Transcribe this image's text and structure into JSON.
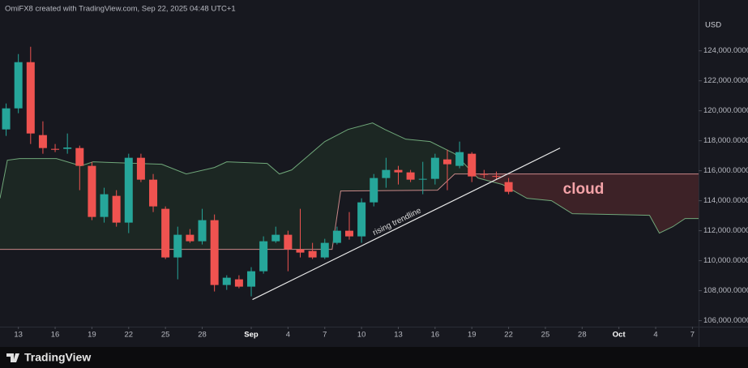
{
  "chart_data": {
    "type": "candlestick",
    "attribution": "OmiFX8 created with TradingView.com, Sep 22, 2025 04:48 UTC+1",
    "currency": "USD",
    "brand": "TradingView",
    "up_color": "#26a69a",
    "down_color": "#ef5350",
    "xlim": [
      -1.5,
      55.5
    ],
    "ylim": [
      105600,
      126200
    ],
    "grid": false,
    "xticks": [
      {
        "value": 0,
        "label": "13"
      },
      {
        "value": 3,
        "label": "16"
      },
      {
        "value": 6,
        "label": "19"
      },
      {
        "value": 9,
        "label": "22"
      },
      {
        "value": 12,
        "label": "25"
      },
      {
        "value": 15,
        "label": "28"
      },
      {
        "value": 19,
        "label": "Sep"
      },
      {
        "value": 22,
        "label": "4"
      },
      {
        "value": 25,
        "label": "7"
      },
      {
        "value": 28,
        "label": "10"
      },
      {
        "value": 31,
        "label": "13"
      },
      {
        "value": 34,
        "label": "16"
      },
      {
        "value": 37,
        "label": "19"
      },
      {
        "value": 40,
        "label": "22"
      },
      {
        "value": 43,
        "label": "25"
      },
      {
        "value": 46,
        "label": "28"
      },
      {
        "value": 49,
        "label": "Oct"
      },
      {
        "value": 52,
        "label": "4"
      },
      {
        "value": 55,
        "label": "7"
      }
    ],
    "yticks": [
      {
        "value": 106000,
        "label": "106,000.0000"
      },
      {
        "value": 108000,
        "label": "108,000.0000"
      },
      {
        "value": 110000,
        "label": "110,000.0000"
      },
      {
        "value": 112000,
        "label": "112,000.0000"
      },
      {
        "value": 114000,
        "label": "114,000.0000"
      },
      {
        "value": 116000,
        "label": "116,000.0000"
      },
      {
        "value": 118000,
        "label": "118,000.0000"
      },
      {
        "value": 120000,
        "label": "120,000.0000"
      },
      {
        "value": 122000,
        "label": "122,000.0000"
      },
      {
        "value": 124000,
        "label": "124,000.0000"
      }
    ],
    "candles": {
      "x": [
        -1,
        0,
        1,
        2,
        3,
        4,
        5,
        6,
        7,
        8,
        9,
        10,
        11,
        12,
        13,
        14,
        15,
        16,
        17,
        18,
        19,
        20,
        21,
        22,
        23,
        24,
        25,
        26,
        27,
        28,
        29,
        30,
        31,
        32,
        33,
        34,
        35,
        36,
        37,
        38,
        39,
        40
      ],
      "open": [
        118757,
        120162,
        123243,
        118378,
        117460,
        117460,
        117514,
        116325,
        112919,
        114325,
        112541,
        116865,
        115405,
        113460,
        110217,
        111730,
        111298,
        112703,
        108380,
        108757,
        108270,
        109297,
        111297,
        111730,
        110757,
        110650,
        110217,
        111190,
        112000,
        111622,
        113892,
        115514,
        116054,
        115892,
        115405,
        115460,
        116757,
        116325,
        117135,
        115785,
        115650,
        115243
      ],
      "high": [
        120487,
        123784,
        124270,
        119297,
        117784,
        118486,
        117676,
        116595,
        114866,
        114703,
        117136,
        117136,
        115784,
        113622,
        112271,
        112109,
        113460,
        113082,
        109027,
        109027,
        109568,
        111623,
        112271,
        112001,
        113460,
        111190,
        111460,
        112271,
        113244,
        114163,
        115784,
        116865,
        116325,
        116055,
        116595,
        117136,
        117406,
        117946,
        117243,
        116055,
        115946,
        115514
      ],
      "low": [
        118325,
        119838,
        117784,
        117136,
        117244,
        117136,
        114703,
        112704,
        112541,
        112271,
        111839,
        115244,
        113244,
        110109,
        108758,
        111190,
        111082,
        107947,
        108055,
        108163,
        107623,
        109136,
        111190,
        109298,
        110217,
        110109,
        110109,
        111082,
        111406,
        111190,
        113622,
        114866,
        115082,
        115244,
        114433,
        115082,
        114703,
        116163,
        115244,
        115514,
        115406,
        114433
      ],
      "close": [
        120162,
        123243,
        118486,
        117514,
        117400,
        117550,
        116325,
        112919,
        114433,
        112541,
        116865,
        115405,
        113622,
        110217,
        111730,
        111298,
        112703,
        108380,
        108865,
        108270,
        109297,
        111297,
        111730,
        110757,
        110541,
        110217,
        111190,
        112000,
        111622,
        113892,
        115514,
        116054,
        115892,
        115405,
        115460,
        116865,
        116433,
        117243,
        115622,
        115730,
        115600,
        114595
      ]
    },
    "cloud": [
      {
        "color": "#7fbf8a",
        "x": [
          -1.5,
          -0.9,
          0.1,
          3.1,
          5.1,
          6.1,
          11.7,
          13.7,
          16,
          17,
          20.3,
          21.3,
          22.3,
          25,
          26.9,
          28.9,
          29.9,
          31.6,
          33.6,
          35.6,
          37.5,
          39.5,
          41.5,
          43.5,
          45.2,
          51.5,
          52.3,
          53.4,
          54.4,
          55.5
        ],
        "values": [
          114163,
          116703,
          116811,
          116811,
          116325,
          116595,
          116433,
          115784,
          116217,
          116595,
          116487,
          115784,
          116055,
          117946,
          118757,
          119190,
          118757,
          118109,
          117946,
          117136,
          115514,
          115082,
          114163,
          114001,
          113136,
          113028,
          111839,
          112271,
          112812,
          112812
        ]
      },
      {
        "color": "#e89a9a",
        "x": [
          -1.5,
          25.6,
          26.3,
          34.2,
          35.6,
          55.5
        ],
        "values": [
          110758,
          110758,
          114649,
          114703,
          115784,
          115784
        ]
      }
    ],
    "trendline": {
      "x": [
        19.1,
        44.2
      ],
      "values": [
        107407,
        117514
      ],
      "color": "#e8e8e8",
      "label": "rising trendline"
    },
    "annotation": {
      "text": "cloud",
      "color": "#f4a3a8"
    }
  }
}
